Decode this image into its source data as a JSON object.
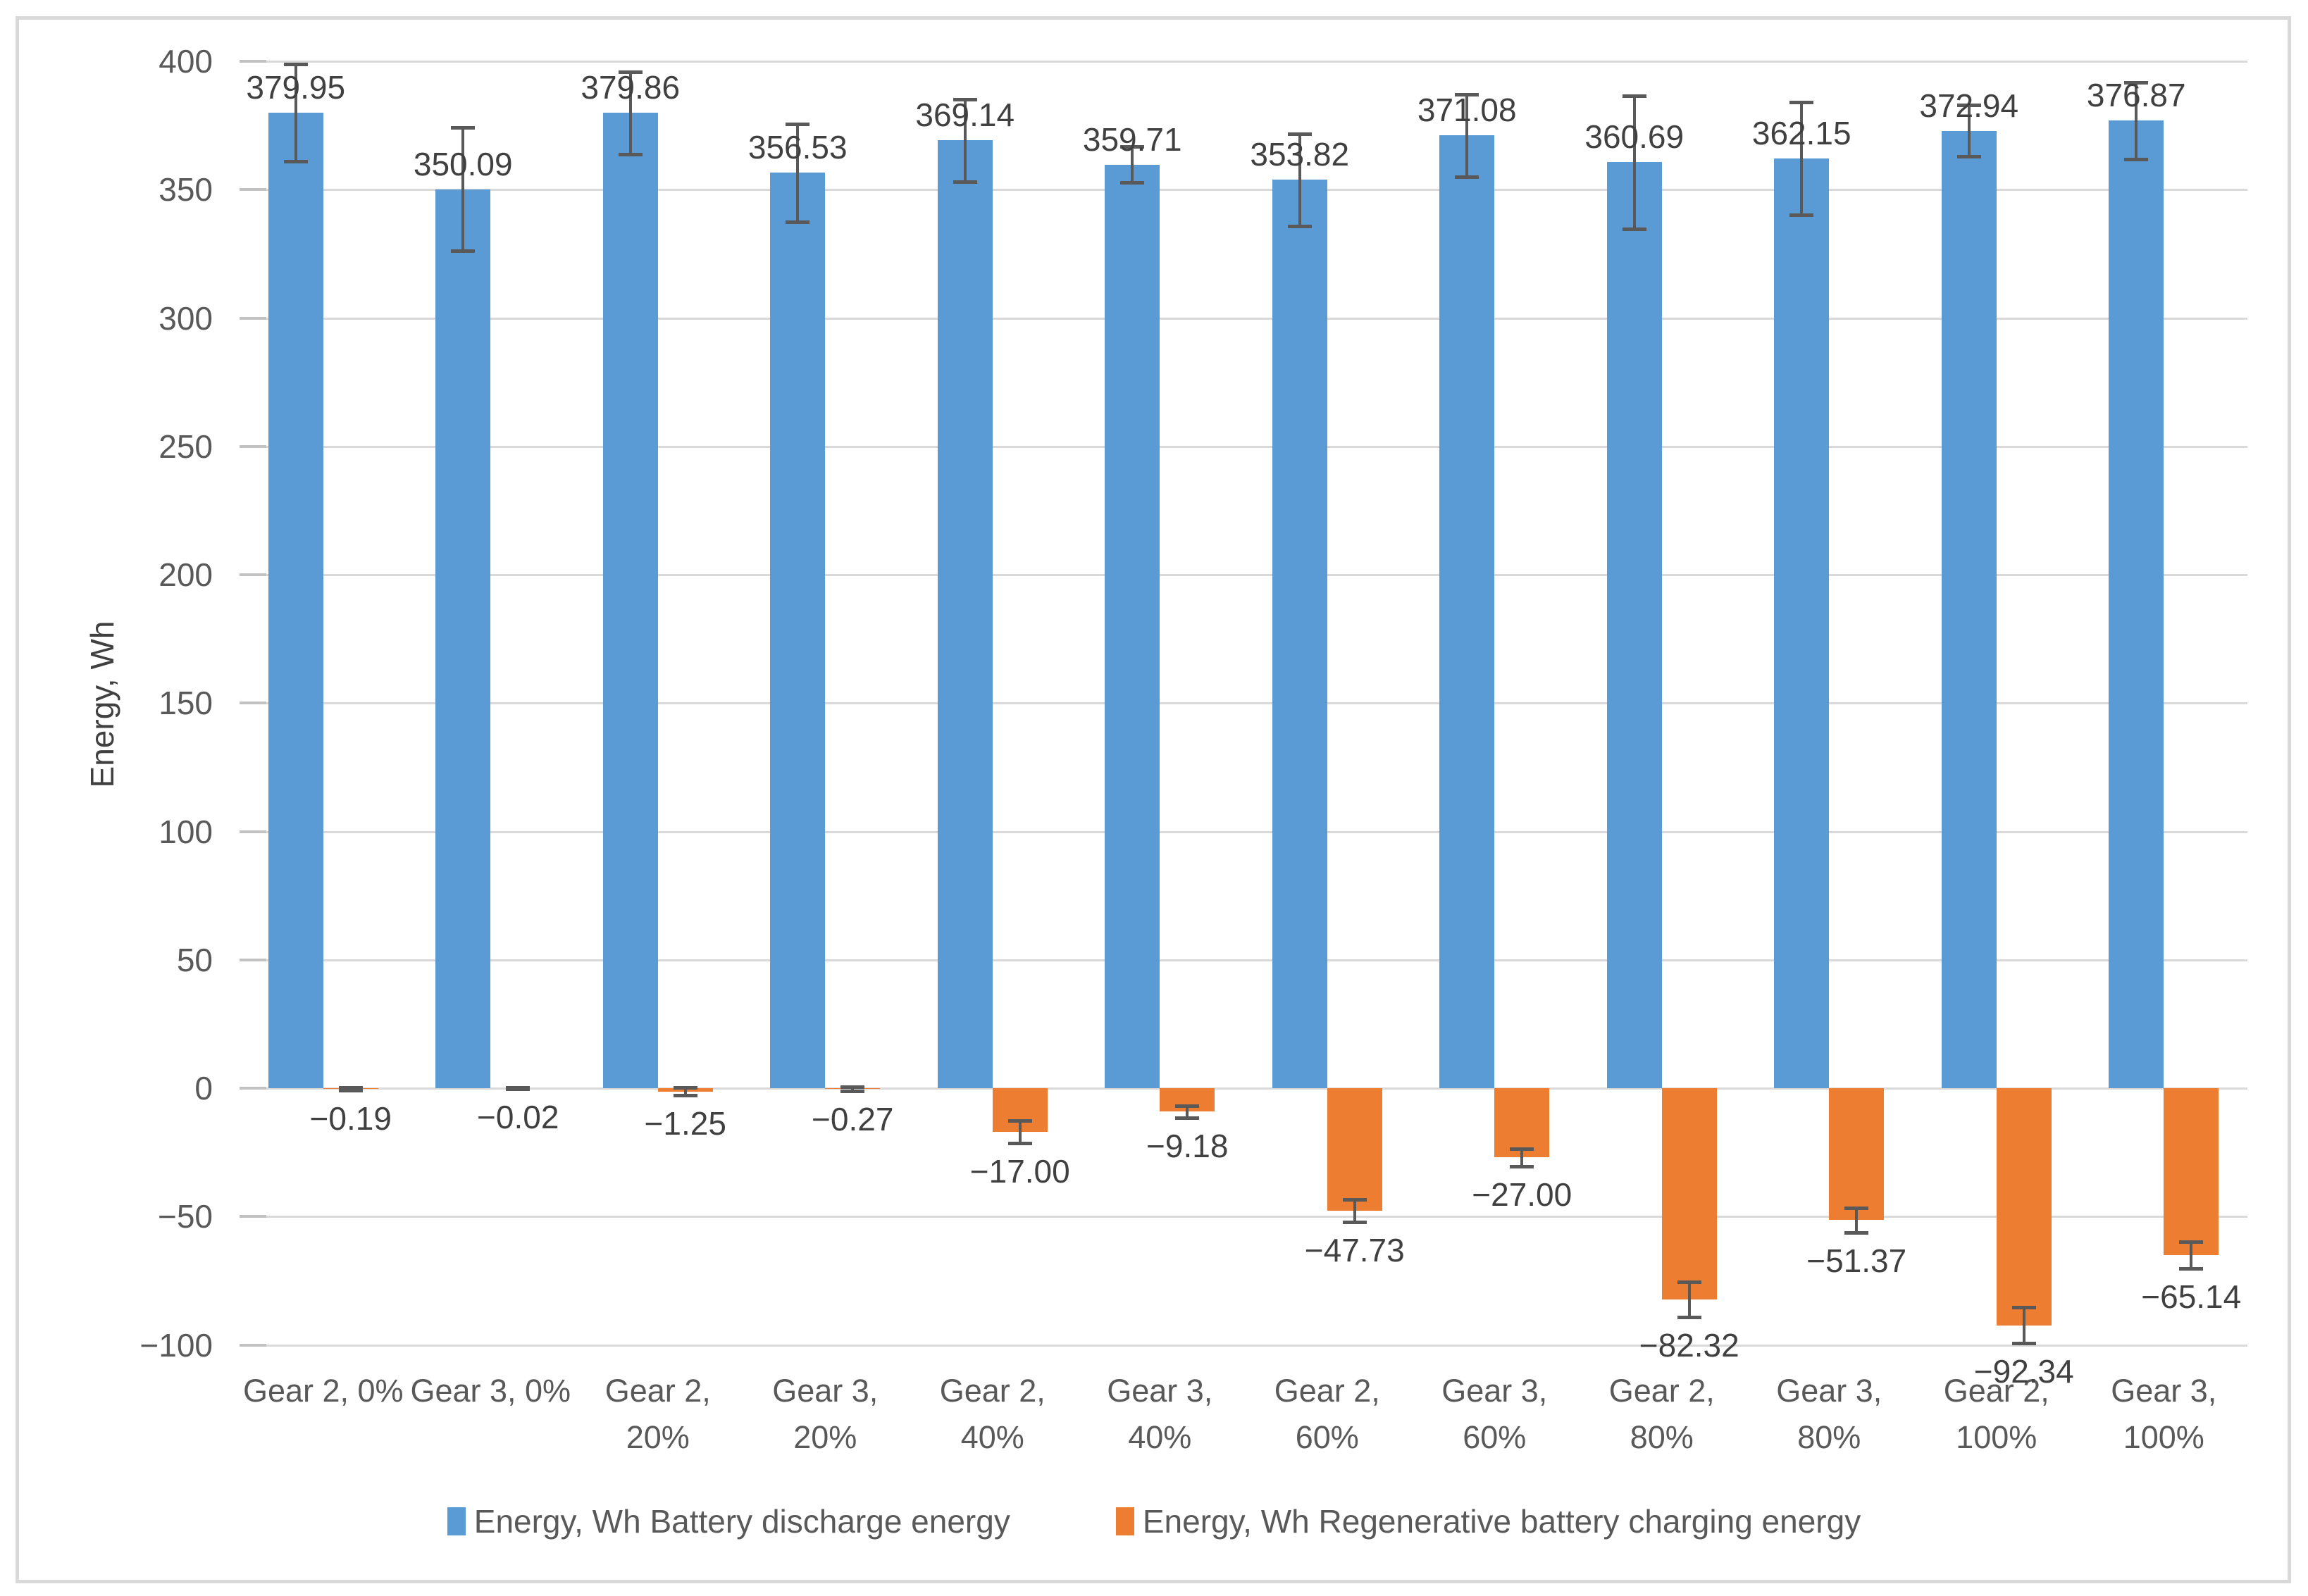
{
  "chart_data": {
    "type": "bar",
    "title": "",
    "ylabel": "Energy, Wh",
    "xlabel": "",
    "ylim": [
      -100,
      400
    ],
    "ytick_step": 50,
    "yticks": [
      400,
      350,
      300,
      250,
      200,
      150,
      100,
      50,
      0,
      -50,
      -100
    ],
    "grid": true,
    "legend_position": "bottom",
    "error_bars": true,
    "categories": [
      {
        "line1": "Gear 2, 0%",
        "line2": ""
      },
      {
        "line1": "Gear 3, 0%",
        "line2": ""
      },
      {
        "line1": "Gear 2,",
        "line2": "20%"
      },
      {
        "line1": "Gear 3,",
        "line2": "20%"
      },
      {
        "line1": "Gear 2,",
        "line2": "40%"
      },
      {
        "line1": "Gear 3,",
        "line2": "40%"
      },
      {
        "line1": "Gear 2,",
        "line2": "60%"
      },
      {
        "line1": "Gear 3,",
        "line2": "60%"
      },
      {
        "line1": "Gear 2,",
        "line2": "80%"
      },
      {
        "line1": "Gear 3,",
        "line2": "80%"
      },
      {
        "line1": "Gear 2,",
        "line2": "100%"
      },
      {
        "line1": "Gear 3,",
        "line2": "100%"
      }
    ],
    "series": [
      {
        "name": "Energy, Wh Battery discharge energy",
        "color": "#5B9BD5",
        "values": [
          379.95,
          350.09,
          379.86,
          356.53,
          369.14,
          359.71,
          353.82,
          371.08,
          360.69,
          362.15,
          372.94,
          376.87
        ],
        "labels": [
          "379.95",
          "350.09",
          "379.86",
          "356.53",
          "369.14",
          "359.71",
          "353.82",
          "371.08",
          "360.69",
          "362.15",
          "372.94",
          "376.87"
        ],
        "errors": [
          19,
          24,
          16,
          19,
          16,
          7,
          18,
          16,
          26,
          22,
          10,
          15
        ]
      },
      {
        "name": "Energy, Wh Regenerative battery charging energy",
        "color": "#ED7D31",
        "values": [
          -0.19,
          -0.02,
          -1.25,
          -0.27,
          -17.0,
          -9.18,
          -47.73,
          -27.0,
          -82.32,
          -51.37,
          -92.34,
          -65.14
        ],
        "labels": [
          "−0.19",
          "−0.02",
          "−1.25",
          "−0.27",
          "−17.00",
          "−9.18",
          "−47.73",
          "−27.00",
          "−82.32",
          "−51.37",
          "−92.34",
          "−65.14"
        ],
        "errors": [
          0.6,
          0.3,
          1.5,
          0.9,
          4.5,
          2.3,
          4.3,
          3.5,
          6.8,
          4.8,
          7.0,
          5.2
        ]
      }
    ]
  }
}
